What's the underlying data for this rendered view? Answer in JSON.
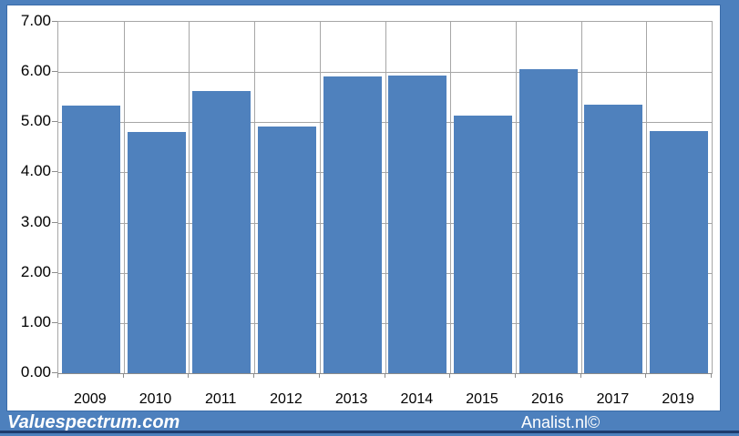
{
  "watermarks": {
    "left": "Valuespectrum.com",
    "right": "Analist.nl©"
  },
  "colors": {
    "bar": "#4f81bd",
    "frame": "#4d80bd",
    "frame_dark_line": "#1e3c6e",
    "gridline": "#a6a6a6",
    "axis": "#8c8c8c",
    "plot_background": "#ffffff",
    "label_text": "#000000",
    "watermark_text": "#ffffff"
  },
  "chart_data": {
    "type": "bar",
    "title": "",
    "xlabel": "",
    "ylabel": "",
    "categories": [
      "2009",
      "2010",
      "2011",
      "2012",
      "2013",
      "2014",
      "2015",
      "2016",
      "2017",
      "2019"
    ],
    "values": [
      5.33,
      4.81,
      5.62,
      4.91,
      5.91,
      5.93,
      5.13,
      6.05,
      5.35,
      4.83
    ],
    "ylim": [
      0,
      7
    ],
    "ytick_step": 1,
    "ytick_labels": [
      "0.00",
      "1.00",
      "2.00",
      "3.00",
      "4.00",
      "5.00",
      "6.00",
      "7.00"
    ],
    "grid": true,
    "legend": false
  }
}
